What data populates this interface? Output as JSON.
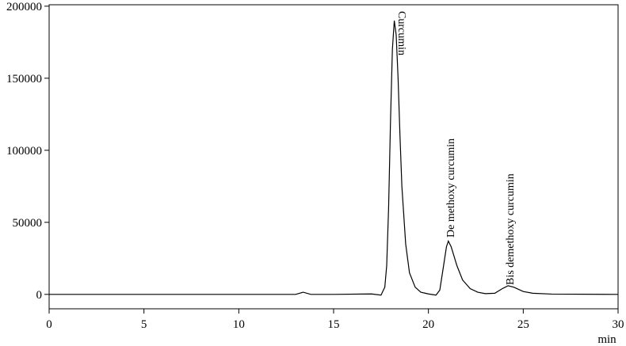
{
  "chart_data": {
    "type": "line",
    "x_label": "min",
    "xlim": [
      0,
      30
    ],
    "xticks": [
      0,
      5,
      10,
      15,
      20,
      25,
      30
    ],
    "ylim": [
      -10000,
      201000
    ],
    "yticks": [
      0,
      50000,
      100000,
      150000,
      200000
    ],
    "grid": false,
    "series": [
      {
        "color": "#000000",
        "x": [
          0,
          5,
          10,
          13.0,
          13.4,
          13.8,
          15,
          17.0,
          17.5,
          17.7,
          17.8,
          17.9,
          18.0,
          18.1,
          18.2,
          18.3,
          18.4,
          18.5,
          18.6,
          18.8,
          19.0,
          19.3,
          19.6,
          20.0,
          20.4,
          20.6,
          20.8,
          20.95,
          21.05,
          21.2,
          21.5,
          21.8,
          22.2,
          22.6,
          23.0,
          23.5,
          23.9,
          24.2,
          24.5,
          25.0,
          25.5,
          26.5,
          30
        ],
        "values": [
          0,
          0,
          0,
          0,
          1500,
          0,
          0,
          300,
          -500,
          5000,
          20000,
          60000,
          120000,
          170000,
          190000,
          180000,
          150000,
          110000,
          75000,
          35000,
          15000,
          5000,
          1500,
          300,
          -500,
          3000,
          20000,
          33000,
          37000,
          33000,
          20000,
          10000,
          4000,
          1500,
          500,
          800,
          4000,
          6000,
          5000,
          2000,
          800,
          200,
          0
        ]
      }
    ],
    "annotations": [
      "Curcumin",
      "De methoxy curcumin",
      "Bis demethoxy curcumin"
    ]
  }
}
